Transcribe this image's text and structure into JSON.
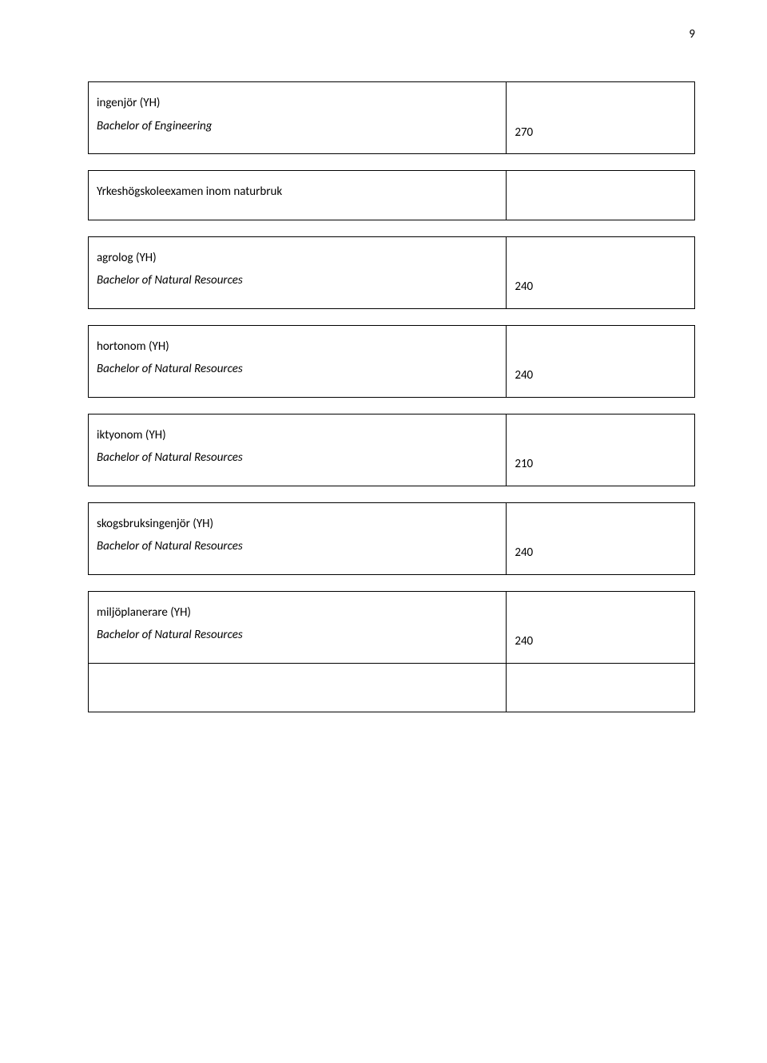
{
  "page_number": "9",
  "blocks": [
    {
      "rows": [
        {
          "title": "ingenjör (YH)",
          "subtitle": "Bachelor of Engineering",
          "value": "270"
        }
      ]
    },
    {
      "rows": [
        {
          "title": "Yrkeshögskoleexamen inom naturbruk",
          "subtitle": "",
          "value": ""
        }
      ]
    },
    {
      "rows": [
        {
          "title": "agrolog (YH)",
          "subtitle": "Bachelor of Natural Resources",
          "value": "240"
        }
      ]
    },
    {
      "rows": [
        {
          "title": "hortonom (YH)",
          "subtitle": "Bachelor of Natural Resources",
          "value": "240"
        }
      ]
    },
    {
      "rows": [
        {
          "title": "iktyonom (YH)",
          "subtitle": "Bachelor of Natural Resources",
          "value": "210"
        }
      ]
    },
    {
      "rows": [
        {
          "title": "skogsbruksingenjör (YH)",
          "subtitle": "Bachelor of Natural Resources",
          "value": "240"
        }
      ]
    },
    {
      "rows": [
        {
          "title": "miljöplanerare (YH)",
          "subtitle": "Bachelor of Natural Resources",
          "value": "240"
        },
        {
          "title": "",
          "subtitle": "",
          "value": ""
        }
      ]
    }
  ]
}
